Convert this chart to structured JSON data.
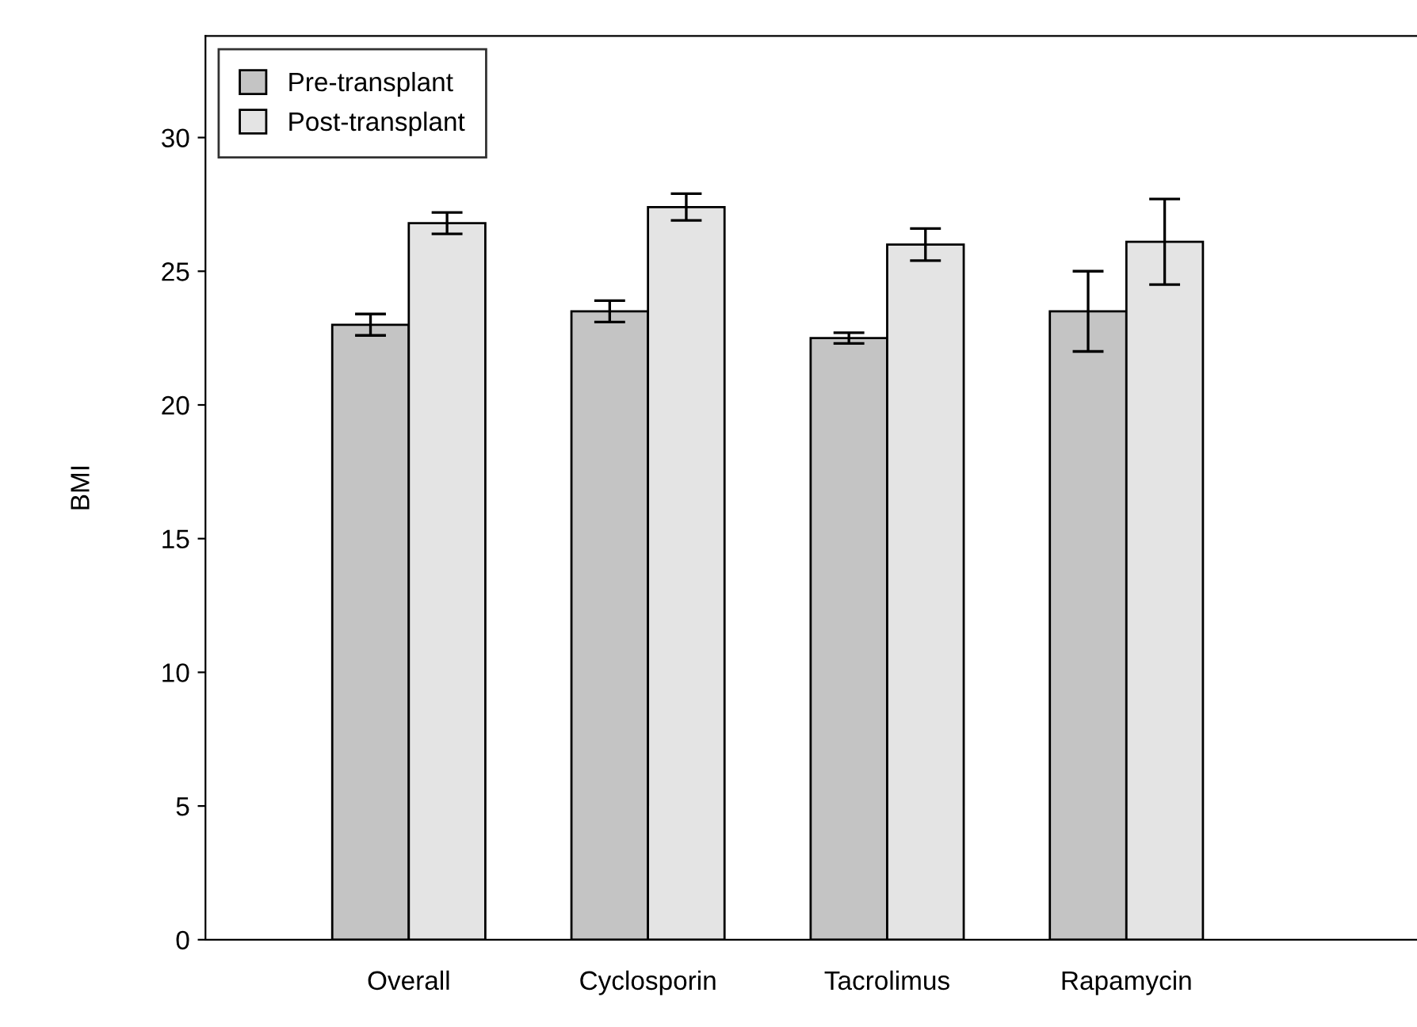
{
  "chart_data": {
    "type": "bar",
    "ylabel": "BMI",
    "categories": [
      "Overall",
      "Cyclosporin",
      "Tacrolimus",
      "Rapamycin"
    ],
    "series": [
      {
        "name": "Pre-transplant",
        "color": "#c4c4c4",
        "values": [
          23.0,
          23.5,
          22.5,
          23.5
        ],
        "errors": [
          0.4,
          0.4,
          0.2,
          1.5
        ]
      },
      {
        "name": "Post-transplant",
        "color": "#e4e4e4",
        "values": [
          26.8,
          27.4,
          26.0,
          26.1
        ],
        "errors": [
          0.4,
          0.5,
          0.6,
          1.6
        ]
      }
    ],
    "ylim": [
      0,
      33.8
    ],
    "yticks": [
      0,
      5,
      10,
      15,
      20,
      25,
      30
    ],
    "grid": false,
    "legend": "top left"
  }
}
